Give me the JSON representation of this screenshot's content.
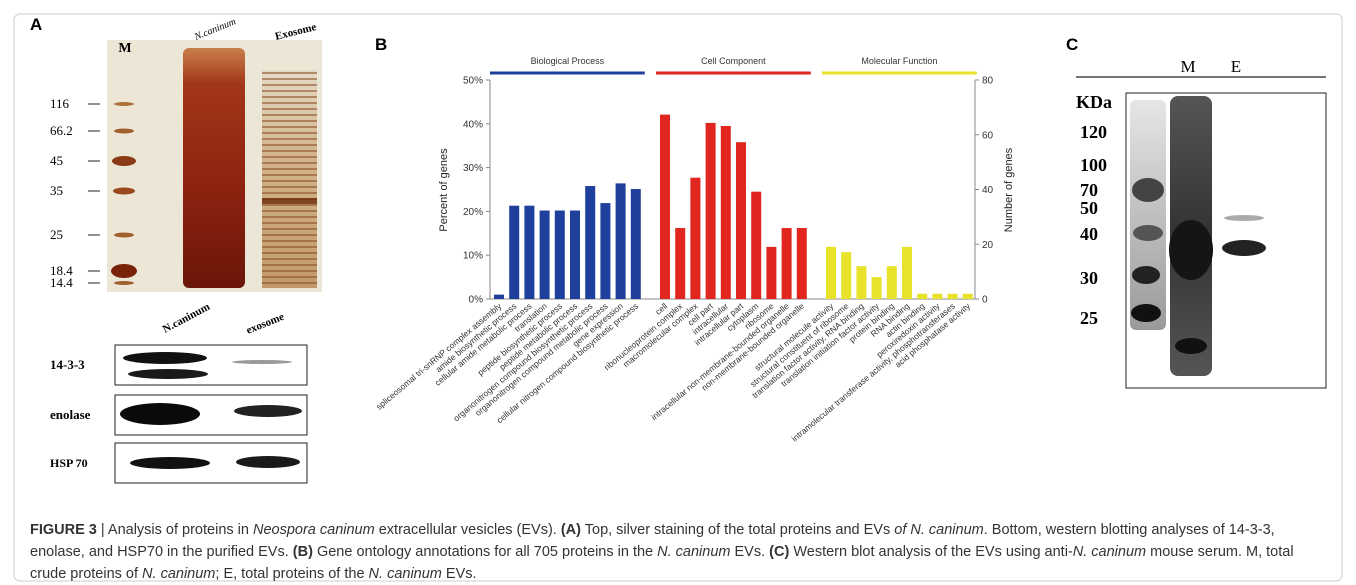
{
  "panels": {
    "a": {
      "label": "A",
      "lanes": [
        "M",
        "N.caninum",
        "Exosome"
      ],
      "markers": [
        "116",
        "66.2",
        "45",
        "35",
        "25",
        "18.4",
        "14.4"
      ],
      "blot_lanes": [
        "N.caninum",
        "exosome"
      ],
      "blots": [
        "14-3-3",
        "enolase",
        "HSP 70"
      ]
    },
    "b": {
      "label": "B"
    },
    "c": {
      "label": "C",
      "lanes": [
        "M",
        "E"
      ],
      "unit": "KDa",
      "markers": [
        "120",
        "100",
        "70",
        "50",
        "40",
        "30",
        "25"
      ]
    }
  },
  "chart_data": {
    "type": "bar",
    "ylabel": "Percent of genes",
    "y2label": "Number of genes",
    "ylim": [
      0,
      50
    ],
    "yticks": [
      {
        "value": 0,
        "label": "0%"
      },
      {
        "value": 10,
        "label": "10%"
      },
      {
        "value": 20,
        "label": "20%"
      },
      {
        "value": 30,
        "label": "30%"
      },
      {
        "value": 40,
        "label": "40%"
      },
      {
        "value": 50,
        "label": "50%"
      }
    ],
    "y2lim": [
      0,
      80
    ],
    "y2ticks": [
      0,
      20,
      40,
      60,
      80
    ],
    "categories": [
      "spliceosomal tri-snRNP complex assembly",
      "amide biosynthetic process",
      "cellular amide metabolic process",
      "translation",
      "peptide biosynthetic process",
      "peptide metabolic process",
      "organonitrogen compound biosynthetic process",
      "organonitrogen compound metabolic process",
      "gene expression",
      "cellular nitrogen compound biosynthetic process",
      "cell",
      "ribonucleoprotein complex",
      "macromolecular complex",
      "cell part",
      "intracellular",
      "intracellular part",
      "cytoplasm",
      "ribosome",
      "intracellular non-membrane-bounded organelle",
      "non-membrane-bounded organelle",
      "structural molecule activity",
      "structural constituent of ribosome",
      "translation factor activity, RNA binding",
      "translation initiation factor activity",
      "protein binding",
      "RNA binding",
      "actin binding",
      "peroxiredoxin activity",
      "intramolecular transferase activity, phosphotransferases",
      "acid phosphatase activity"
    ],
    "series": [
      {
        "name": "Biological Process",
        "color": "#1f3f9c",
        "values": [
          1,
          21.3,
          21.3,
          20.2,
          20.2,
          20.2,
          25.8,
          21.9,
          26.4,
          25.1,
          null,
          null,
          null,
          null,
          null,
          null,
          null,
          null,
          null,
          null,
          null,
          null,
          null,
          null,
          null,
          null,
          null,
          null,
          null,
          null
        ]
      },
      {
        "name": "Cell Component",
        "color": "#e0261e",
        "values": [
          null,
          null,
          null,
          null,
          null,
          null,
          null,
          null,
          null,
          null,
          42.1,
          16.2,
          27.7,
          40.2,
          39.5,
          35.8,
          24.5,
          11.9,
          16.2,
          16.2,
          null,
          null,
          null,
          null,
          null,
          null,
          null,
          null,
          null,
          null
        ]
      },
      {
        "name": "Molecular Function",
        "color": "#e8e22a",
        "values": [
          null,
          null,
          null,
          null,
          null,
          null,
          null,
          null,
          null,
          null,
          null,
          null,
          null,
          null,
          null,
          null,
          null,
          null,
          null,
          null,
          11.9,
          10.7,
          7.5,
          5,
          7.5,
          11.9,
          1.2,
          1.2,
          1.2,
          1.2
        ]
      }
    ]
  },
  "caption": {
    "segments": [
      "FIGURE 3",
      " | Analysis of proteins in ",
      "Neospora caninum",
      " extracellular vesicles (EVs). ",
      "(A)",
      " Top, silver staining of the total proteins and EVs ",
      "of N. caninum",
      ". Bottom, western blotting analyses of 14-3-3, enolase, and HSP70 in the purified EVs. ",
      "(B)",
      " Gene ontology annotations for all 705 proteins in the ",
      "N. caninum",
      " EVs. ",
      "(C)",
      " Western blot analysis of the EVs using anti-",
      "N. caninum",
      " mouse serum. M, total crude proteins of ",
      "N. caninum",
      "; E, total proteins of the ",
      "N. caninum",
      " EVs."
    ]
  }
}
